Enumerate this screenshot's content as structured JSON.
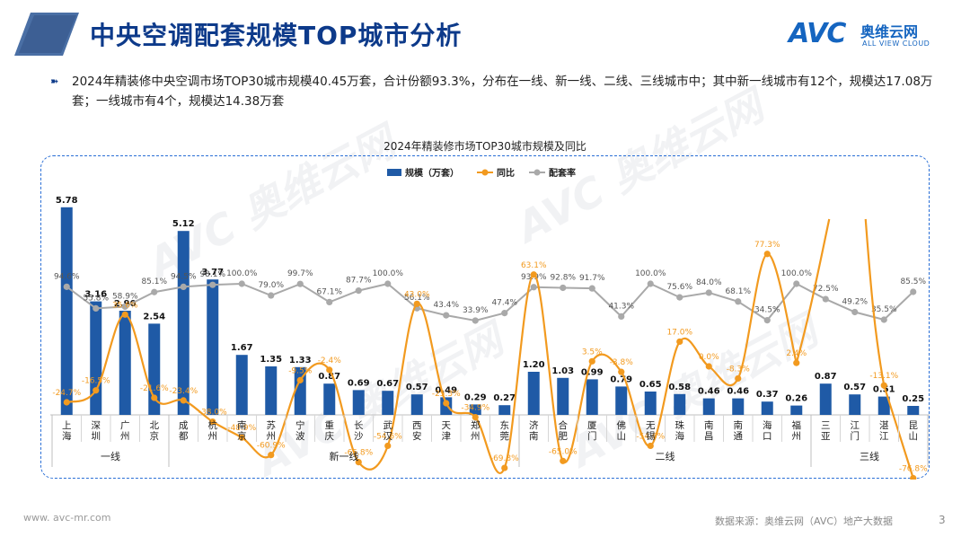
{
  "header": {
    "title": "中央空调配套规模TOP城市分析",
    "logo_mark": "AVC",
    "logo_cn": "奥维云网",
    "logo_en": "ALL VIEW CLOUD"
  },
  "summary": {
    "text": "2024年精装修中央空调市场TOP30城市规模40.45万套，合计份额93.3%，分布在一线、新一线、二线、三线城市中；其中新一线城市有12个，规模达17.08万套；一线城市有4个，规模达14.38万套"
  },
  "colors": {
    "bar": "#1f5aa6",
    "yoy": "#f29a1f",
    "ratio": "#a9a9a9",
    "title": "#0d3a8a",
    "border": "#2a6fd6"
  },
  "chart_data": {
    "type": "bar",
    "title": "2024年精装修市场TOP30城市规模及同比",
    "legend": [
      "规模（万套）",
      "同比",
      "配套率"
    ],
    "legend_position": "top-center",
    "categories": [
      "上海",
      "深圳",
      "广州",
      "北京",
      "成都",
      "杭州",
      "南京",
      "苏州",
      "宁波",
      "重庆",
      "长沙",
      "武汉",
      "西安",
      "天津",
      "郑州",
      "东莞",
      "济南",
      "合肥",
      "厦门",
      "佛山",
      "无锡",
      "珠海",
      "南昌",
      "南通",
      "海口",
      "福州",
      "三亚",
      "江门",
      "湛江",
      "昆山"
    ],
    "groups": [
      {
        "name": "一线",
        "count": 4
      },
      {
        "name": "新一线",
        "count": 12
      },
      {
        "name": "二线",
        "count": 10
      },
      {
        "name": "三线",
        "count": 4
      }
    ],
    "series": [
      {
        "name": "规模（万套）",
        "type": "bar",
        "values": [
          5.78,
          3.16,
          2.9,
          2.54,
          5.12,
          3.77,
          1.67,
          1.35,
          1.33,
          0.87,
          0.69,
          0.67,
          0.57,
          0.49,
          0.29,
          0.27,
          1.2,
          1.03,
          0.99,
          0.79,
          0.65,
          0.58,
          0.46,
          0.46,
          0.37,
          0.26,
          0.87,
          0.57,
          0.51,
          0.25
        ],
        "labels": [
          "5.78",
          "3.16",
          "2.90",
          "2.54",
          "5.12",
          "3.77",
          "1.67",
          "1.35",
          "1.33",
          "0.87",
          "0.69",
          "0.67",
          "0.57",
          "0.49",
          "0.29",
          "0.27",
          "1.20",
          "1.03",
          "0.99",
          "0.79",
          "0.65",
          "0.58",
          "0.46",
          "0.46",
          "0.37",
          "0.26",
          "0.87",
          "0.57",
          "0.51",
          "0.25"
        ]
      },
      {
        "name": "同比",
        "type": "line",
        "values": [
          -24.7,
          -16.5,
          35.6,
          -21.6,
          -23.4,
          -38.0,
          -48.9,
          -60.9,
          -9.5,
          -2.4,
          -65.8,
          -54.6,
          43.0,
          -25.3,
          -34.9,
          -69.8,
          63.1,
          -65.0,
          3.5,
          -3.8,
          -54.6,
          17.0,
          0.0,
          -8.3,
          77.3,
          2.4,
          null,
          null,
          -13.1,
          -76.8
        ],
        "labels": [
          "-24.7%",
          "-16.5%",
          "35.6%",
          "-21.6%",
          "-23.4%",
          "-38.0%",
          "-48.9%",
          "-60.9%",
          "-9.5%",
          "-2.4%",
          "-65.8%",
          "-54.6%",
          "43.0%",
          "-25.3%",
          "-34.9%",
          "-69.8%",
          "63.1%",
          "-65.0%",
          "3.5%",
          "-3.8%",
          "-54.6%",
          "17.0%",
          "0.0%",
          "-8.3%",
          "77.3%",
          "2.4%",
          "",
          "",
          "-13.1%",
          "-76.8%"
        ]
      },
      {
        "name": "配套率",
        "type": "line",
        "values": [
          94.6,
          55.8,
          58.9,
          85.1,
          94.5,
          98.1,
          100.0,
          79.0,
          99.7,
          67.1,
          87.7,
          100.0,
          56.1,
          43.4,
          33.9,
          47.4,
          93.9,
          92.8,
          91.7,
          41.3,
          100.0,
          75.6,
          84.0,
          68.1,
          34.5,
          100.0,
          72.5,
          49.2,
          35.5,
          85.5
        ],
        "labels": [
          "94.6%",
          "55.8%",
          "58.9%",
          "85.1%",
          "94.5%",
          "98.1%",
          "100.0%",
          "79.0%",
          "99.7%",
          "67.1%",
          "87.7%",
          "100.0%",
          "56.1%",
          "43.4%",
          "33.9%",
          "47.4%",
          "93.9%",
          "92.8%",
          "91.7%",
          "41.3%",
          "100.0%",
          "75.6%",
          "84.0%",
          "68.1%",
          "34.5%",
          "100.0%",
          "72.5%",
          "49.2%",
          "35.5%",
          "85.5%"
        ]
      }
    ]
  },
  "footer": {
    "website": "www. avc-mr.com",
    "source": "数据来源：奥维云网（AVC）地产大数据",
    "page": "3"
  }
}
